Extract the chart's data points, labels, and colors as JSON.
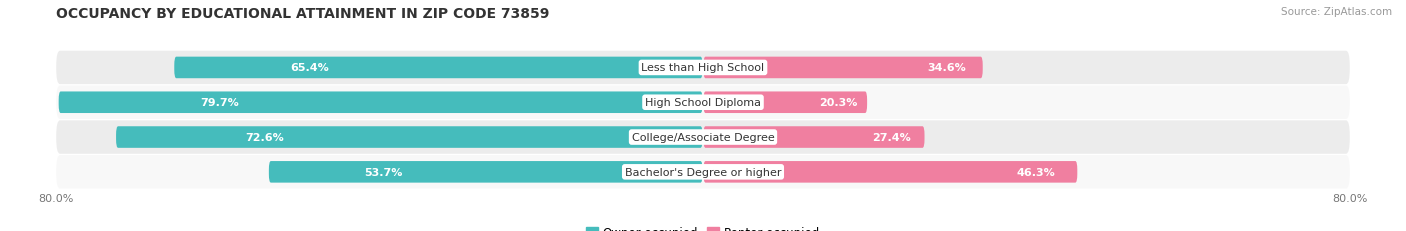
{
  "title": "OCCUPANCY BY EDUCATIONAL ATTAINMENT IN ZIP CODE 73859",
  "source": "Source: ZipAtlas.com",
  "categories": [
    "Less than High School",
    "High School Diploma",
    "College/Associate Degree",
    "Bachelor's Degree or higher"
  ],
  "owner_pct": [
    65.4,
    79.7,
    72.6,
    53.7
  ],
  "renter_pct": [
    34.6,
    20.3,
    27.4,
    46.3
  ],
  "owner_color": "#45BCBC",
  "renter_color": "#F07FA0",
  "row_bg_even": "#ECECEC",
  "row_bg_odd": "#F8F8F8",
  "title_fontsize": 10,
  "label_fontsize": 8,
  "pct_fontsize": 8,
  "legend_fontsize": 8.5,
  "source_fontsize": 7.5,
  "total_width": 100.0,
  "left_axis_label": "80.0%",
  "right_axis_label": "80.0%"
}
